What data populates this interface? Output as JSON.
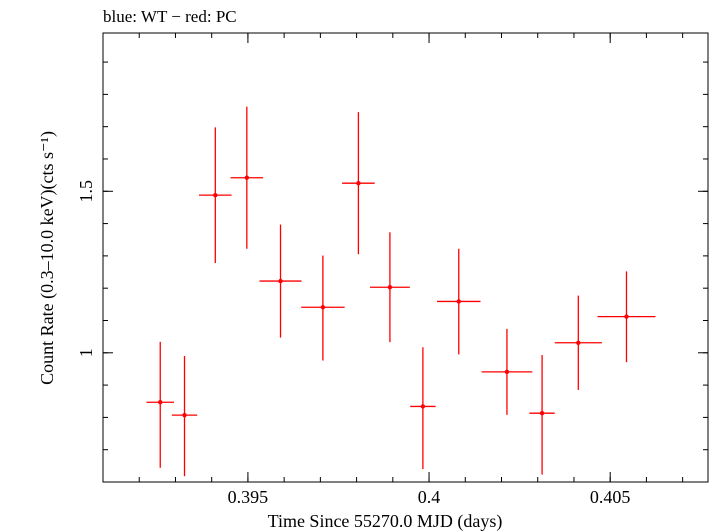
{
  "chart_data": {
    "type": "scatter",
    "title": "blue: WT − red: PC",
    "xlabel": "Time Since 55270.0 MJD (days)",
    "ylabel": "Count Rate (0.3–10.0 keV)(cts s⁻¹)",
    "xlim": [
      0.391,
      0.4077
    ],
    "ylim": [
      0.6,
      1.99
    ],
    "x_ticks": [
      {
        "value": 0.395,
        "label": "0.395"
      },
      {
        "value": 0.4,
        "label": "0.4"
      },
      {
        "value": 0.405,
        "label": "0.405"
      }
    ],
    "y_ticks": [
      {
        "value": 1.0,
        "label": "1"
      },
      {
        "value": 1.5,
        "label": "1.5"
      }
    ],
    "x_minor_step": 0.001,
    "y_minor_step": 0.1,
    "series": [
      {
        "name": "PC",
        "color": "#ff0000",
        "points": [
          {
            "x": 0.39258,
            "xerr": 0.00038,
            "y": 0.847,
            "yerr_lo": 0.203,
            "yerr_hi": 0.187
          },
          {
            "x": 0.39325,
            "xerr": 0.00035,
            "y": 0.807,
            "yerr_lo": 0.189,
            "yerr_hi": 0.183
          },
          {
            "x": 0.3941,
            "xerr": 0.00045,
            "y": 1.488,
            "yerr_lo": 0.21,
            "yerr_hi": 0.21
          },
          {
            "x": 0.39497,
            "xerr": 0.00045,
            "y": 1.542,
            "yerr_lo": 0.22,
            "yerr_hi": 0.22
          },
          {
            "x": 0.3959,
            "xerr": 0.00058,
            "y": 1.222,
            "yerr_lo": 0.175,
            "yerr_hi": 0.175
          },
          {
            "x": 0.39707,
            "xerr": 0.0006,
            "y": 1.141,
            "yerr_lo": 0.165,
            "yerr_hi": 0.16
          },
          {
            "x": 0.39805,
            "xerr": 0.00045,
            "y": 1.525,
            "yerr_lo": 0.22,
            "yerr_hi": 0.22
          },
          {
            "x": 0.39892,
            "xerr": 0.00055,
            "y": 1.203,
            "yerr_lo": 0.17,
            "yerr_hi": 0.17
          },
          {
            "x": 0.39983,
            "xerr": 0.00035,
            "y": 0.834,
            "yerr_lo": 0.194,
            "yerr_hi": 0.183
          },
          {
            "x": 0.40082,
            "xerr": 0.0006,
            "y": 1.159,
            "yerr_lo": 0.164,
            "yerr_hi": 0.163
          },
          {
            "x": 0.40215,
            "xerr": 0.0007,
            "y": 0.941,
            "yerr_lo": 0.133,
            "yerr_hi": 0.133
          },
          {
            "x": 0.40312,
            "xerr": 0.00035,
            "y": 0.813,
            "yerr_lo": 0.19,
            "yerr_hi": 0.18
          },
          {
            "x": 0.40412,
            "xerr": 0.00065,
            "y": 1.031,
            "yerr_lo": 0.146,
            "yerr_hi": 0.146
          },
          {
            "x": 0.40545,
            "xerr": 0.0008,
            "y": 1.112,
            "yerr_lo": 0.141,
            "yerr_hi": 0.14
          }
        ]
      }
    ]
  }
}
